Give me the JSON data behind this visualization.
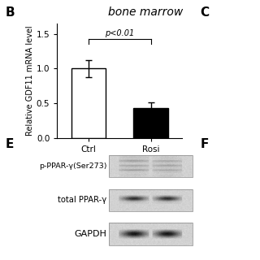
{
  "title": "bone marrow",
  "panel_b_label": "B",
  "panel_e_label": "E",
  "panel_c_label": "C",
  "panel_f_label": "F",
  "bar_categories": [
    "Ctrl",
    "Rosi"
  ],
  "bar_values": [
    1.0,
    0.43
  ],
  "bar_errors": [
    0.12,
    0.08
  ],
  "bar_colors": [
    "white",
    "black"
  ],
  "bar_edgecolor": "black",
  "ylabel": "Relative GDF11 mRNA level",
  "ylim": [
    0,
    1.65
  ],
  "yticks": [
    0.0,
    0.5,
    1.0,
    1.5
  ],
  "pvalue_text": "p<0.01",
  "background_color": "white",
  "western_labels": [
    "p-PPAR-γ(Ser273)",
    "total PPAR-γ",
    "GAPDH"
  ],
  "title_fontstyle": "italic",
  "title_fontsize": 10,
  "ylabel_fontsize": 7,
  "tick_fontsize": 7.5,
  "pvalue_fontsize": 7,
  "panel_label_fontsize": 11
}
